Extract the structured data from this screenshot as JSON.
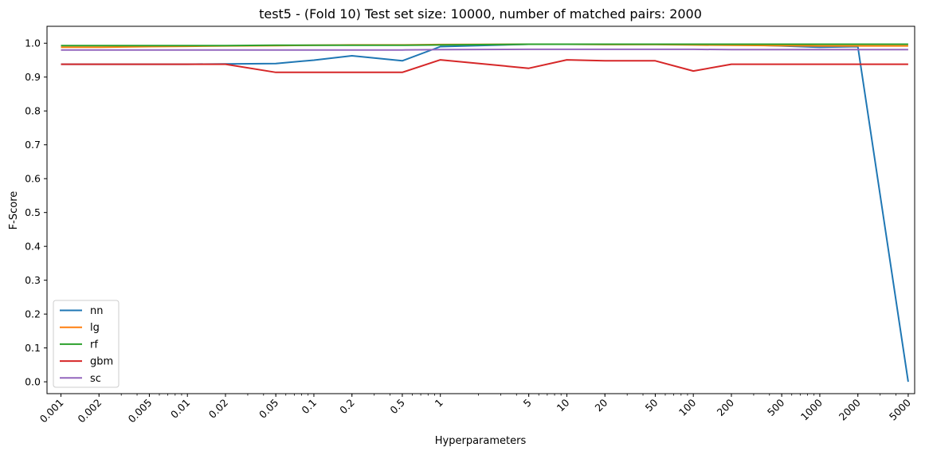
{
  "chart_data": {
    "type": "line",
    "title": "test5 - (Fold 10) Test set size: 10000, number of matched pairs: 2000",
    "xlabel": "Hyperparameters",
    "ylabel": "F-Score",
    "x_scale": "log",
    "x": [
      0.001,
      0.002,
      0.005,
      0.01,
      0.02,
      0.05,
      0.1,
      0.2,
      0.5,
      1,
      5,
      10,
      20,
      50,
      100,
      200,
      500,
      1000,
      2000,
      5000
    ],
    "x_tick_labels": [
      "0.001",
      "0.002",
      "0.005",
      "0.01",
      "0.02",
      "0.05",
      "0.1",
      "0.2",
      "0.5",
      "1",
      "5",
      "10",
      "20",
      "50",
      "100",
      "200",
      "500",
      "1000",
      "2000",
      "5000"
    ],
    "ylim": [
      -0.035,
      1.05
    ],
    "y_ticks": [
      "0.0",
      "0.1",
      "0.2",
      "0.3",
      "0.4",
      "0.5",
      "0.6",
      "0.7",
      "0.8",
      "0.9",
      "1.0"
    ],
    "grid": false,
    "legend_position": "lower-left",
    "series": [
      {
        "name": "nn",
        "color": "#1f77b4",
        "values": [
          0.938,
          0.938,
          0.938,
          0.938,
          0.939,
          0.94,
          0.95,
          0.963,
          0.948,
          0.99,
          0.997,
          0.997,
          0.997,
          0.997,
          0.997,
          0.996,
          0.992,
          0.988,
          0.99,
          0.0
        ]
      },
      {
        "name": "lg",
        "color": "#ff7f0e",
        "values": [
          0.988,
          0.988,
          0.99,
          0.991,
          0.992,
          0.993,
          0.994,
          0.995,
          0.995,
          0.996,
          0.997,
          0.997,
          0.996,
          0.996,
          0.995,
          0.994,
          0.993,
          0.992,
          0.992,
          0.992
        ]
      },
      {
        "name": "rf",
        "color": "#2ca02c",
        "values": [
          0.993,
          0.993,
          0.993,
          0.993,
          0.993,
          0.994,
          0.994,
          0.994,
          0.994,
          0.995,
          0.997,
          0.997,
          0.997,
          0.997,
          0.997,
          0.997,
          0.997,
          0.997,
          0.997,
          0.997
        ]
      },
      {
        "name": "gbm",
        "color": "#d62728",
        "values": [
          0.938,
          0.938,
          0.938,
          0.938,
          0.938,
          0.914,
          0.914,
          0.914,
          0.914,
          0.951,
          0.926,
          0.951,
          0.948,
          0.948,
          0.918,
          0.938,
          0.938,
          0.938,
          0.938,
          0.938
        ]
      },
      {
        "name": "sc",
        "color": "#9467bd",
        "values": [
          0.98,
          0.98,
          0.98,
          0.98,
          0.98,
          0.98,
          0.98,
          0.98,
          0.98,
          0.981,
          0.982,
          0.982,
          0.982,
          0.982,
          0.982,
          0.981,
          0.981,
          0.981,
          0.981,
          0.981
        ]
      }
    ]
  }
}
